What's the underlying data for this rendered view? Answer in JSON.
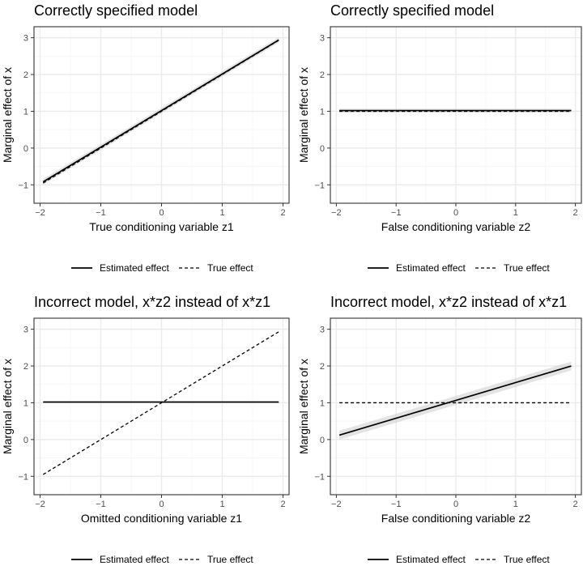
{
  "colors": {
    "panel_background": "#ffffff",
    "panel_border": "#333333",
    "grid_major": "#ebebeb",
    "grid_minor": "#f5f5f5",
    "line": "#000000",
    "ribbon": "#cccccc",
    "tick_text": "#4d4d4d"
  },
  "chart_data": [
    {
      "type": "line",
      "title": "Correctly specified model",
      "xlabel": "True conditioning variable z1",
      "ylabel": "Marginal effect of x",
      "xlim": [
        -2.1,
        2.1
      ],
      "ylim": [
        -1.5,
        3.3
      ],
      "xticks": [
        -2,
        -1,
        0,
        1,
        2
      ],
      "yticks": [
        -1,
        0,
        1,
        2,
        3
      ],
      "xtick_labels": [
        "−2",
        "−1",
        "0",
        "1",
        "2"
      ],
      "ytick_labels": [
        "−1",
        "0",
        "1",
        "2",
        "3"
      ],
      "grid": true,
      "legend": "bottom",
      "series": [
        {
          "name": "Estimated effect",
          "style": "solid",
          "x": [
            -1.95,
            1.93
          ],
          "y": [
            -0.92,
            2.94
          ],
          "band_lower": [
            -1.0,
            2.87
          ],
          "band_upper": [
            -0.84,
            3.01
          ]
        },
        {
          "name": "True effect",
          "style": "dashed",
          "x": [
            -1.95,
            1.93
          ],
          "y": [
            -0.95,
            2.93
          ]
        }
      ]
    },
    {
      "type": "line",
      "title": "Correctly specified model",
      "xlabel": "False conditioning variable z2",
      "ylabel": "Marginal effect of x",
      "xlim": [
        -2.1,
        2.1
      ],
      "ylim": [
        -1.5,
        3.3
      ],
      "xticks": [
        -2,
        -1,
        0,
        1,
        2
      ],
      "yticks": [
        -1,
        0,
        1,
        2,
        3
      ],
      "xtick_labels": [
        "−2",
        "−1",
        "0",
        "1",
        "2"
      ],
      "ytick_labels": [
        "−1",
        "0",
        "1",
        "2",
        "3"
      ],
      "grid": true,
      "legend": "bottom",
      "series": [
        {
          "name": "Estimated effect",
          "style": "solid",
          "x": [
            -1.95,
            1.93
          ],
          "y": [
            1.02,
            1.02
          ],
          "band_lower": [
            0.97,
            0.97
          ],
          "band_upper": [
            1.07,
            1.07
          ]
        },
        {
          "name": "True effect",
          "style": "dashed",
          "x": [
            -1.95,
            1.93
          ],
          "y": [
            1.0,
            1.0
          ]
        }
      ]
    },
    {
      "type": "line",
      "title": "Incorrect model, x*z2 instead of x*z1",
      "xlabel": "Omitted conditioning variable z1",
      "ylabel": "Marginal effect of x",
      "xlim": [
        -2.1,
        2.1
      ],
      "ylim": [
        -1.5,
        3.3
      ],
      "xticks": [
        -2,
        -1,
        0,
        1,
        2
      ],
      "yticks": [
        -1,
        0,
        1,
        2,
        3
      ],
      "xtick_labels": [
        "−2",
        "−1",
        "0",
        "1",
        "2"
      ],
      "ytick_labels": [
        "−1",
        "0",
        "1",
        "2",
        "3"
      ],
      "grid": true,
      "legend": "bottom",
      "series": [
        {
          "name": "Estimated effect",
          "style": "solid",
          "x": [
            -1.95,
            1.93
          ],
          "y": [
            1.02,
            1.02
          ],
          "band_lower": [
            0.99,
            0.99
          ],
          "band_upper": [
            1.05,
            1.05
          ]
        },
        {
          "name": "True effect",
          "style": "dashed",
          "x": [
            -1.95,
            1.93
          ],
          "y": [
            -0.95,
            2.93
          ]
        }
      ]
    },
    {
      "type": "line",
      "title": "Incorrect model, x*z2 instead of x*z1",
      "xlabel": "False conditioning variable z2",
      "ylabel": "Marginal effect of x",
      "xlim": [
        -2.1,
        2.1
      ],
      "ylim": [
        -1.5,
        3.3
      ],
      "xticks": [
        -2,
        -1,
        0,
        1,
        2
      ],
      "yticks": [
        -1,
        0,
        1,
        2,
        3
      ],
      "xtick_labels": [
        "−2",
        "−1",
        "0",
        "1",
        "2"
      ],
      "ytick_labels": [
        "−1",
        "0",
        "1",
        "2",
        "3"
      ],
      "grid": true,
      "legend": "bottom",
      "series": [
        {
          "name": "Estimated effect",
          "style": "solid",
          "x": [
            -1.95,
            1.93
          ],
          "y": [
            0.12,
            2.0
          ],
          "band_lower": [
            0.0,
            1.88
          ],
          "band_upper": [
            0.24,
            2.12
          ]
        },
        {
          "name": "True effect",
          "style": "dashed",
          "x": [
            -1.95,
            1.93
          ],
          "y": [
            1.0,
            1.0
          ]
        }
      ]
    }
  ]
}
